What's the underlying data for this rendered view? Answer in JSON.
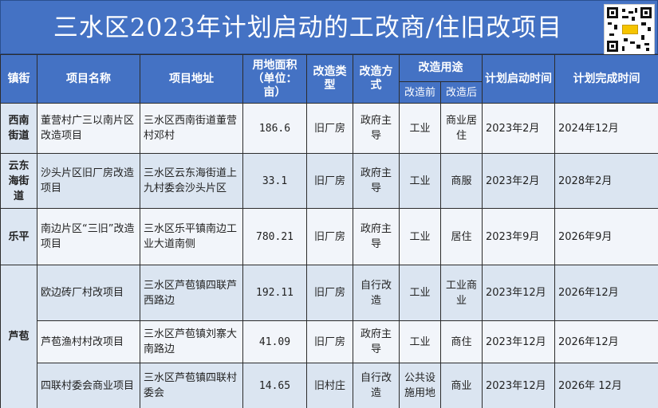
{
  "title": "三水区2023年计划启动的工改商/住旧改项目",
  "qr_badge": "二维码",
  "header": {
    "district": "镇街",
    "name": "项目名称",
    "address": "项目地址",
    "area": "用地面积（单位：亩）",
    "type": "改造类型",
    "method": "改造方式",
    "usage": "改造用途",
    "usage_before": "改造前",
    "usage_after": "改造后",
    "start": "计划启动时间",
    "finish": "计划完成时间"
  },
  "groups": [
    {
      "district": "西南街道",
      "rows": [
        {
          "name": "董营村广三以南片区改造项目",
          "address": "三水区西南街道董营村邓村",
          "area": "186.6",
          "type": "旧厂房",
          "method": "政府主导",
          "before": "工业",
          "after": "商业居住",
          "start": "2023年2月",
          "finish": "2024年12月"
        }
      ]
    },
    {
      "district": "云东海街道",
      "rows": [
        {
          "name": "沙头片区旧厂房改造项目",
          "address": "三水区云东海街道上九村委会沙头片区",
          "area": "33.1",
          "type": "旧厂房",
          "method": "政府主导",
          "before": "工业",
          "after": "商服",
          "start": "2023年2月",
          "finish": "2028年2月"
        }
      ]
    },
    {
      "district": "乐平",
      "rows": [
        {
          "name": "南边片区“三旧”改造项目",
          "address": "三水区乐平镇南边工业大道南侧",
          "area": "780.21",
          "type": "旧厂房",
          "method": "政府主导",
          "before": "工业",
          "after": "居住",
          "start": "2023年9月",
          "finish": "2026年9月"
        }
      ]
    },
    {
      "district": "芦苞",
      "rows": [
        {
          "name": "欧边砖厂村改项目",
          "address": "三水区芦苞镇四联芦西路边",
          "area": "192.11",
          "type": "旧厂房",
          "method": "自行改造",
          "before": "工业",
          "after": "工业商业",
          "start": "2023年12月",
          "finish": "2026年12月"
        },
        {
          "name": "芦苞渔村村改项目",
          "address": "三水区芦苞镇刘寨大南路边",
          "area": "41.09",
          "type": "旧厂房",
          "method": "政府主导",
          "before": "工业",
          "after": "商住",
          "start": "2023年12月",
          "finish": "2026年12月"
        },
        {
          "name": "四联村委会商业项目",
          "address": "三水区芦苞镇四联村委会",
          "area": "14.65",
          "type": "旧村庄",
          "method": "自行改造",
          "before": "公共设施用地",
          "after": "商业",
          "start": "2023年12月",
          "finish": "2026年 12月"
        }
      ]
    }
  ],
  "colors": {
    "header_bg": "#4472c4",
    "row_alt": "#dbe5f1",
    "row_plain": "#f2f5fa"
  }
}
